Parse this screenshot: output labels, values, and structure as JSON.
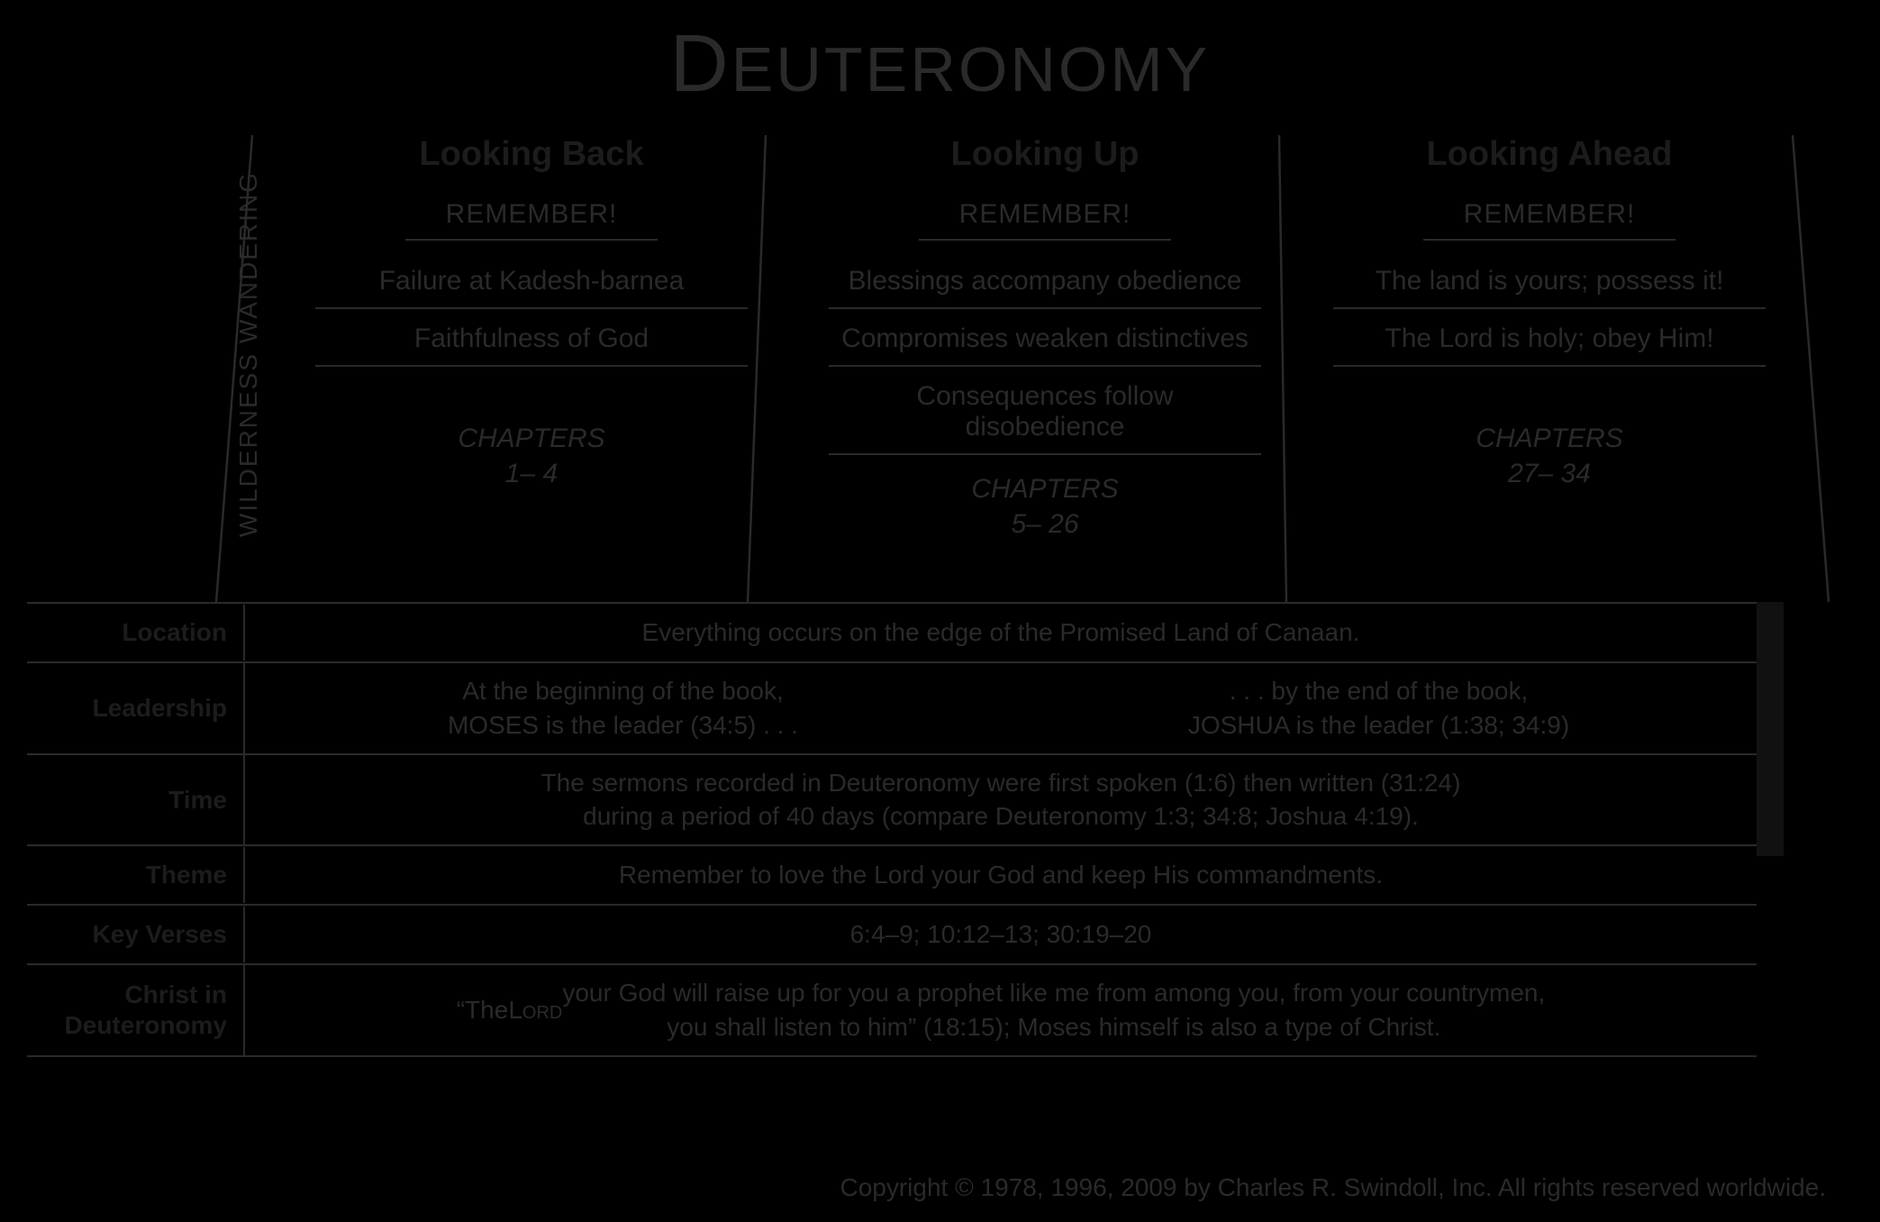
{
  "title_html": "<span class='dcap'>D</span>EUTERONOMY",
  "vertical_label": "WILDERNESS WANDERING",
  "columns": [
    {
      "head": "Looking Back",
      "remember": "REMEMBER!",
      "points": [
        "Failure at Kadesh-barnea",
        "Faithfulness of God"
      ],
      "chapters_label": "CHAPTERS",
      "chapters_range": "1– 4"
    },
    {
      "head": "Looking Up",
      "remember": "REMEMBER!",
      "points": [
        "Blessings accompany obedience",
        "Compromises weaken distinctives",
        "Consequences follow disobedience"
      ],
      "chapters_label": "CHAPTERS",
      "chapters_range": "5– 26"
    },
    {
      "head": "Looking Ahead",
      "remember": "REMEMBER!",
      "points": [
        "The land is yours; possess it!",
        "The Lord is holy; obey Him!"
      ],
      "chapters_label": "CHAPTERS",
      "chapters_range": "27– 34"
    }
  ],
  "rows": {
    "location": {
      "label": "Location",
      "text": "Everything occurs on the edge of the Promised Land of Canaan."
    },
    "leadership": {
      "label": "Leadership",
      "left_html": "At the beginning of the book,<br>MOSES is the leader (34:5) . . .",
      "right_html": ". . . by the end of the book,<br>JOSHUA is the leader (1:38; 34:9)"
    },
    "time": {
      "label": "Time",
      "text_html": "The sermons recorded in Deuteronomy were first spoken (1:6) then written (31:24)<br>during a period of 40 days (compare Deuteronomy 1:3; 34:8; Joshua 4:19)."
    },
    "theme": {
      "label": "Theme",
      "text": "Remember to love the Lord your God and keep His commandments."
    },
    "key_verses": {
      "label": "Key Verses",
      "text": "6:4–9; 10:12–13; 30:19–20"
    },
    "christ": {
      "label_html": "Christ in<br>Deuteronomy",
      "text_html": "“The <span class='sc'>Lord</span> your God will raise up for you a prophet like me from among you, from your countrymen,<br>you shall listen to him” (18:15); Moses himself is also a type of Christ."
    }
  },
  "copyright": "Copyright © 1978, 1996, 2009 by Charles R. Swindoll, Inc. All rights reserved worldwide.",
  "colors": {
    "background": "#000000",
    "ink": "#2a2a2a",
    "ink_dark": "#1c1c1c"
  }
}
